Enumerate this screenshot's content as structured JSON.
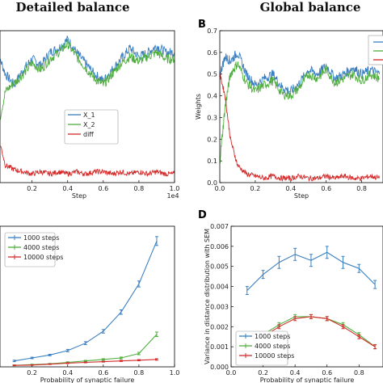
{
  "figure": {
    "column_titles": [
      "Detailed balance",
      "Global balance"
    ],
    "panel_letters": [
      "B",
      "D"
    ]
  },
  "colors": {
    "x1": "#3a7fc1",
    "x2": "#4fae3e",
    "diff": "#d42828"
  },
  "chart_data": [
    {
      "id": "A",
      "type": "line",
      "xlabel": "Step",
      "ylabel": "",
      "x_scale_label": "1e4",
      "xlim": [
        0.0,
        1.0
      ],
      "ylim": [
        0.0,
        0.7
      ],
      "xticks": [
        "0.2",
        "0.4",
        "0.6",
        "0.8",
        "1.0"
      ],
      "yticks": [],
      "legend": {
        "placement": "center-right",
        "entries": [
          "X_1",
          "X_2",
          "diff"
        ]
      },
      "series": [
        {
          "name": "X_1",
          "color": "#3a7fc1",
          "x": [
            0.0,
            0.05,
            0.1,
            0.15,
            0.2,
            0.25,
            0.3,
            0.35,
            0.4,
            0.45,
            0.5,
            0.55,
            0.6,
            0.65,
            0.7,
            0.75,
            0.8,
            0.85,
            0.9,
            0.95,
            1.0
          ],
          "values": [
            0.62,
            0.5,
            0.45,
            0.52,
            0.57,
            0.54,
            0.6,
            0.62,
            0.66,
            0.6,
            0.55,
            0.5,
            0.47,
            0.52,
            0.57,
            0.62,
            0.58,
            0.6,
            0.63,
            0.6,
            0.6
          ]
        },
        {
          "name": "X_2",
          "color": "#4fae3e",
          "x": [
            0.0,
            0.05,
            0.1,
            0.15,
            0.2,
            0.25,
            0.3,
            0.35,
            0.4,
            0.45,
            0.5,
            0.55,
            0.6,
            0.65,
            0.7,
            0.75,
            0.8,
            0.85,
            0.9,
            0.95,
            1.0
          ],
          "values": [
            0.22,
            0.42,
            0.46,
            0.5,
            0.55,
            0.52,
            0.57,
            0.6,
            0.64,
            0.58,
            0.53,
            0.48,
            0.45,
            0.5,
            0.55,
            0.58,
            0.56,
            0.58,
            0.6,
            0.57,
            0.57
          ]
        },
        {
          "name": "diff",
          "color": "#d42828",
          "x": [
            0.0,
            0.05,
            0.1,
            0.15,
            0.2,
            0.25,
            0.3,
            0.35,
            0.4,
            0.45,
            0.5,
            0.55,
            0.6,
            0.65,
            0.7,
            0.75,
            0.8,
            0.85,
            0.9,
            0.95,
            1.0
          ],
          "values": [
            0.25,
            0.08,
            0.06,
            0.05,
            0.04,
            0.05,
            0.04,
            0.05,
            0.04,
            0.05,
            0.04,
            0.05,
            0.05,
            0.04,
            0.05,
            0.04,
            0.05,
            0.04,
            0.05,
            0.04,
            0.04
          ]
        }
      ]
    },
    {
      "id": "B",
      "type": "line",
      "xlabel": "Step",
      "ylabel": "Weights",
      "xlim": [
        0.0,
        1.0
      ],
      "ylim": [
        0.0,
        0.7
      ],
      "xticks": [
        "0.0",
        "0.2",
        "0.4",
        "0.6",
        "0.8"
      ],
      "yticks": [
        "0.0",
        "0.1",
        "0.2",
        "0.3",
        "0.4",
        "0.5",
        "0.6",
        "0.7"
      ],
      "legend": {
        "placement": "top-right",
        "entries": []
      },
      "series": [
        {
          "color": "#3a7fc1",
          "x": [
            0.0,
            0.03,
            0.06,
            0.1,
            0.15,
            0.2,
            0.25,
            0.3,
            0.35,
            0.4,
            0.45,
            0.5,
            0.55,
            0.6,
            0.65,
            0.7,
            0.75,
            0.8,
            0.85,
            0.9
          ],
          "values": [
            0.5,
            0.58,
            0.56,
            0.6,
            0.5,
            0.45,
            0.48,
            0.5,
            0.44,
            0.42,
            0.46,
            0.52,
            0.5,
            0.54,
            0.48,
            0.5,
            0.53,
            0.5,
            0.52,
            0.5
          ]
        },
        {
          "color": "#4fae3e",
          "x": [
            0.0,
            0.03,
            0.06,
            0.1,
            0.15,
            0.2,
            0.25,
            0.3,
            0.35,
            0.4,
            0.45,
            0.5,
            0.55,
            0.6,
            0.65,
            0.7,
            0.75,
            0.8,
            0.85,
            0.9
          ],
          "values": [
            0.1,
            0.35,
            0.5,
            0.55,
            0.46,
            0.42,
            0.45,
            0.47,
            0.41,
            0.4,
            0.44,
            0.5,
            0.48,
            0.52,
            0.46,
            0.48,
            0.5,
            0.47,
            0.5,
            0.48
          ]
        },
        {
          "color": "#d42828",
          "x": [
            0.0,
            0.03,
            0.06,
            0.1,
            0.15,
            0.2,
            0.25,
            0.3,
            0.35,
            0.4,
            0.45,
            0.5,
            0.55,
            0.6,
            0.65,
            0.7,
            0.75,
            0.8,
            0.85,
            0.9
          ],
          "values": [
            0.5,
            0.4,
            0.2,
            0.08,
            0.04,
            0.03,
            0.02,
            0.03,
            0.02,
            0.02,
            0.03,
            0.02,
            0.02,
            0.03,
            0.02,
            0.03,
            0.02,
            0.02,
            0.03,
            0.02
          ]
        }
      ]
    },
    {
      "id": "C",
      "type": "line",
      "xlabel": "Probability of synaptic failure",
      "ylabel": "",
      "xlim": [
        0.0,
        1.0
      ],
      "ylim": [
        0.0,
        1.0
      ],
      "xticks": [
        "0.2",
        "0.4",
        "0.6",
        "0.8",
        "1.0"
      ],
      "yticks": [],
      "legend": {
        "placement": "top-left",
        "entries": [
          "1000 steps",
          "4000 steps",
          "10000 steps"
        ]
      },
      "series": [
        {
          "name": "1000 steps",
          "color": "#3a7fc1",
          "x": [
            0.1,
            0.2,
            0.3,
            0.4,
            0.5,
            0.6,
            0.7,
            0.8,
            0.9
          ],
          "values": [
            0.04,
            0.06,
            0.08,
            0.11,
            0.16,
            0.24,
            0.37,
            0.56,
            0.85
          ],
          "err": [
            0.005,
            0.005,
            0.005,
            0.008,
            0.01,
            0.012,
            0.015,
            0.02,
            0.03
          ]
        },
        {
          "name": "4000 steps",
          "color": "#4fae3e",
          "x": [
            0.1,
            0.2,
            0.3,
            0.4,
            0.5,
            0.6,
            0.7,
            0.8,
            0.9
          ],
          "values": [
            0.01,
            0.015,
            0.02,
            0.03,
            0.04,
            0.05,
            0.06,
            0.09,
            0.22
          ],
          "err": [
            0.003,
            0.003,
            0.003,
            0.004,
            0.004,
            0.005,
            0.006,
            0.008,
            0.015
          ]
        },
        {
          "name": "10000 steps",
          "color": "#d42828",
          "x": [
            0.1,
            0.2,
            0.3,
            0.4,
            0.5,
            0.6,
            0.7,
            0.8,
            0.9
          ],
          "values": [
            0.01,
            0.012,
            0.018,
            0.025,
            0.03,
            0.035,
            0.04,
            0.045,
            0.05
          ],
          "err": [
            0.002,
            0.002,
            0.002,
            0.003,
            0.003,
            0.003,
            0.004,
            0.004,
            0.005
          ]
        }
      ]
    },
    {
      "id": "D",
      "type": "line",
      "xlabel": "Probability of synaptic failure",
      "ylabel": "Variance in distance distribution with SEM",
      "xlim": [
        0.0,
        0.95
      ],
      "ylim": [
        0.0,
        0.007
      ],
      "xticks": [
        "0.0",
        "0.2",
        "0.4",
        "0.6",
        "0.8"
      ],
      "yticks": [
        "0.000",
        "0.001",
        "0.002",
        "0.003",
        "0.004",
        "0.005",
        "0.006",
        "0.007"
      ],
      "legend": {
        "placement": "bottom-left",
        "entries": [
          "1000 steps",
          "4000 steps",
          "10000 steps"
        ]
      },
      "series": [
        {
          "name": "1000 steps",
          "color": "#3a7fc1",
          "x": [
            0.1,
            0.2,
            0.3,
            0.4,
            0.5,
            0.6,
            0.7,
            0.8,
            0.9
          ],
          "values": [
            0.0038,
            0.0046,
            0.0052,
            0.0056,
            0.0053,
            0.0057,
            0.0052,
            0.0049,
            0.0041
          ],
          "err": [
            0.0002,
            0.0002,
            0.0003,
            0.0003,
            0.0003,
            0.0003,
            0.0003,
            0.0002,
            0.0002
          ]
        },
        {
          "name": "4000 steps",
          "color": "#4fae3e",
          "x": [
            0.1,
            0.2,
            0.3,
            0.4,
            0.5,
            0.6,
            0.7,
            0.8,
            0.9
          ],
          "values": [
            0.001,
            0.0016,
            0.0021,
            0.0025,
            0.0025,
            0.0024,
            0.0021,
            0.0016,
            0.001
          ],
          "err": [
            0.0001,
            0.0001,
            0.0001,
            0.0001,
            0.0001,
            0.0001,
            0.0001,
            0.0001,
            0.0001
          ]
        },
        {
          "name": "10000 steps",
          "color": "#d42828",
          "x": [
            0.1,
            0.2,
            0.3,
            0.4,
            0.5,
            0.6,
            0.7,
            0.8,
            0.9
          ],
          "values": [
            0.001,
            0.0015,
            0.002,
            0.0024,
            0.0025,
            0.0024,
            0.002,
            0.0015,
            0.001
          ],
          "err": [
            0.0001,
            0.0001,
            0.0001,
            0.0001,
            0.0001,
            0.0001,
            0.0001,
            0.0001,
            0.0001
          ]
        }
      ]
    }
  ]
}
